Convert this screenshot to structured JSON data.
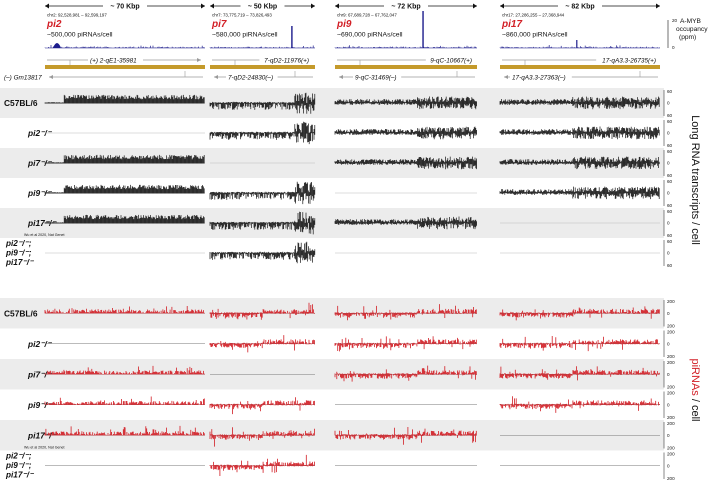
{
  "colors": {
    "accent": "#d21f26",
    "gene": "#c49a2b",
    "chip": "#1c1c8c",
    "rna": "#1a1a1a",
    "pirna": "#d21f26",
    "band": "#ececec",
    "arrow": "#9a9a9a"
  },
  "loci": [
    {
      "span": "~ 70 Kbp",
      "coords": "chr2: 92,528,981 – 92,599,197",
      "name": "pi2",
      "count": "~500,000 piRNAs/cell",
      "genes": [
        {
          "label": "(+) 2-qE1-35981",
          "dir": "right"
        },
        {
          "label": "(–) Gm13817",
          "dir": "left"
        }
      ]
    },
    {
      "span": "~ 50 Kbp",
      "coords": "chr7: 73,775,719 – 73,826,493",
      "name": "pi7",
      "count": "~580,000 piRNAs/cell",
      "genes": [
        {
          "label": "7-qD2-11976(+)",
          "dir": "right"
        },
        {
          "label": "7-qD2-24830(–)",
          "dir": "left"
        }
      ]
    },
    {
      "span": "~ 72 Kbp",
      "coords": "chr9: 67,689,728 – 67,762,047",
      "name": "pi9",
      "count": "~690,000 piRNAs/cell",
      "genes": [
        {
          "label": "9-qC-10667(+)",
          "dir": "right"
        },
        {
          "label": "9-qC-31469(–)",
          "dir": "left"
        }
      ]
    },
    {
      "span": "~ 82 Kbp",
      "coords": "chr17: 27,286,255 – 27,368,944",
      "name": "pi17",
      "count": "~860,000 piRNAs/cell",
      "genes": [
        {
          "label": "17-qA3.3-26735(+)",
          "dir": "right"
        },
        {
          "label": "17-qA3.3-27363(–)",
          "dir": "left"
        }
      ]
    }
  ],
  "amyb": {
    "label_line1": "A-MYB",
    "label_line2": "occupancy",
    "label_line3": "(ppm)",
    "tick_top": "20",
    "tick_bottom": "0"
  },
  "rna_section": {
    "axis_title": "Long RNA transcripts / cell",
    "tick_top": "60",
    "tick_mid": "0",
    "tick_bottom": "60",
    "rows": [
      {
        "label": "C57BL/6",
        "shaded": true,
        "note": "",
        "tracks": [
          1,
          1,
          1,
          1
        ]
      },
      {
        "label": "pi2⁻/⁻",
        "shaded": false,
        "note": "",
        "tracks": [
          0,
          1,
          1,
          1
        ]
      },
      {
        "label": "pi7⁻/⁻",
        "shaded": true,
        "note": "",
        "tracks": [
          1,
          0,
          1,
          1
        ]
      },
      {
        "label": "pi9⁻/⁻",
        "shaded": false,
        "note": "",
        "tracks": [
          1,
          1,
          0,
          1
        ]
      },
      {
        "label": "pi17⁻/⁻",
        "shaded": true,
        "note": "Wu et al 2020, Nat Genet",
        "tracks": [
          1,
          1,
          1,
          0
        ]
      },
      {
        "label": "pi2⁻/⁻; pi9⁻/⁻; pi17⁻/⁻",
        "lines": [
          "pi2⁻/⁻;",
          "pi9⁻/⁻;",
          "pi17⁻/⁻"
        ],
        "shaded": false,
        "note": "",
        "tracks": [
          0,
          1,
          0,
          0
        ]
      }
    ]
  },
  "pirna_section": {
    "axis_title_red": "piRNAs",
    "axis_title_black": " / cell",
    "tick_top": "200",
    "tick_mid": "0",
    "tick_bottom": "200",
    "rows": [
      {
        "label": "C57BL/6",
        "shaded": true,
        "note": "",
        "tracks": [
          1,
          1,
          1,
          1
        ]
      },
      {
        "label": "pi2⁻/⁻",
        "shaded": false,
        "note": "",
        "tracks": [
          0,
          1,
          1,
          1
        ]
      },
      {
        "label": "pi7⁻/⁻",
        "shaded": true,
        "note": "",
        "tracks": [
          1,
          0,
          1,
          1
        ]
      },
      {
        "label": "pi9⁻/⁻",
        "shaded": false,
        "note": "",
        "tracks": [
          1,
          1,
          0,
          1
        ]
      },
      {
        "label": "pi17⁻/⁻",
        "shaded": true,
        "note": "Wu et al 2020, Nat Genet",
        "tracks": [
          1,
          1,
          1,
          0
        ]
      },
      {
        "label": "pi2⁻/⁻; pi9⁻/⁻; pi17⁻/⁻",
        "lines": [
          "pi2⁻/⁻;",
          "pi9⁻/⁻;",
          "pi17⁻/⁻"
        ],
        "shaded": false,
        "note": "",
        "tracks": [
          0,
          1,
          0,
          0
        ]
      }
    ]
  }
}
